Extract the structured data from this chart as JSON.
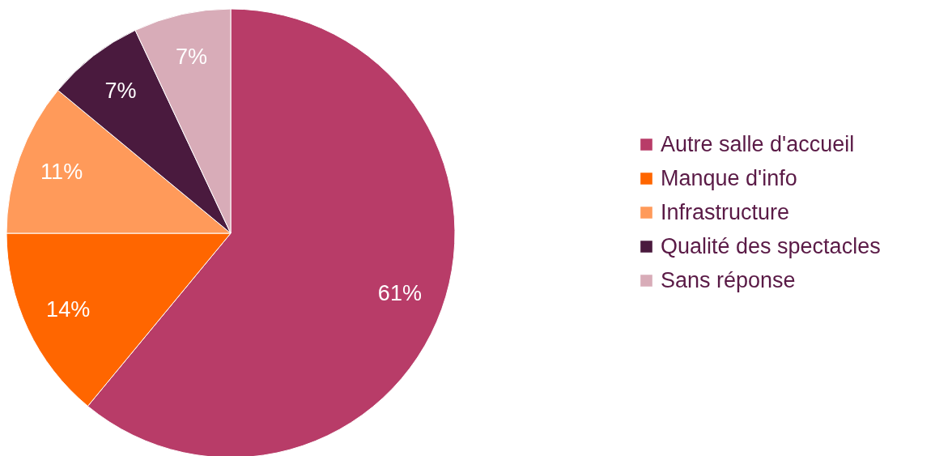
{
  "chart_data": {
    "type": "pie",
    "categories": [
      "Autre salle d'accueil",
      "Manque d'info",
      "Infrastructure",
      "Qualité des spectacles",
      "Sans réponse"
    ],
    "values": [
      61,
      14,
      11,
      7,
      7
    ],
    "colors": [
      "#b83c68",
      "#ff6600",
      "#ff9a5a",
      "#4a1a3e",
      "#d8acb8"
    ],
    "value_labels": [
      "61%",
      "14%",
      "11%",
      "7%",
      "7%"
    ],
    "legend": "right"
  }
}
